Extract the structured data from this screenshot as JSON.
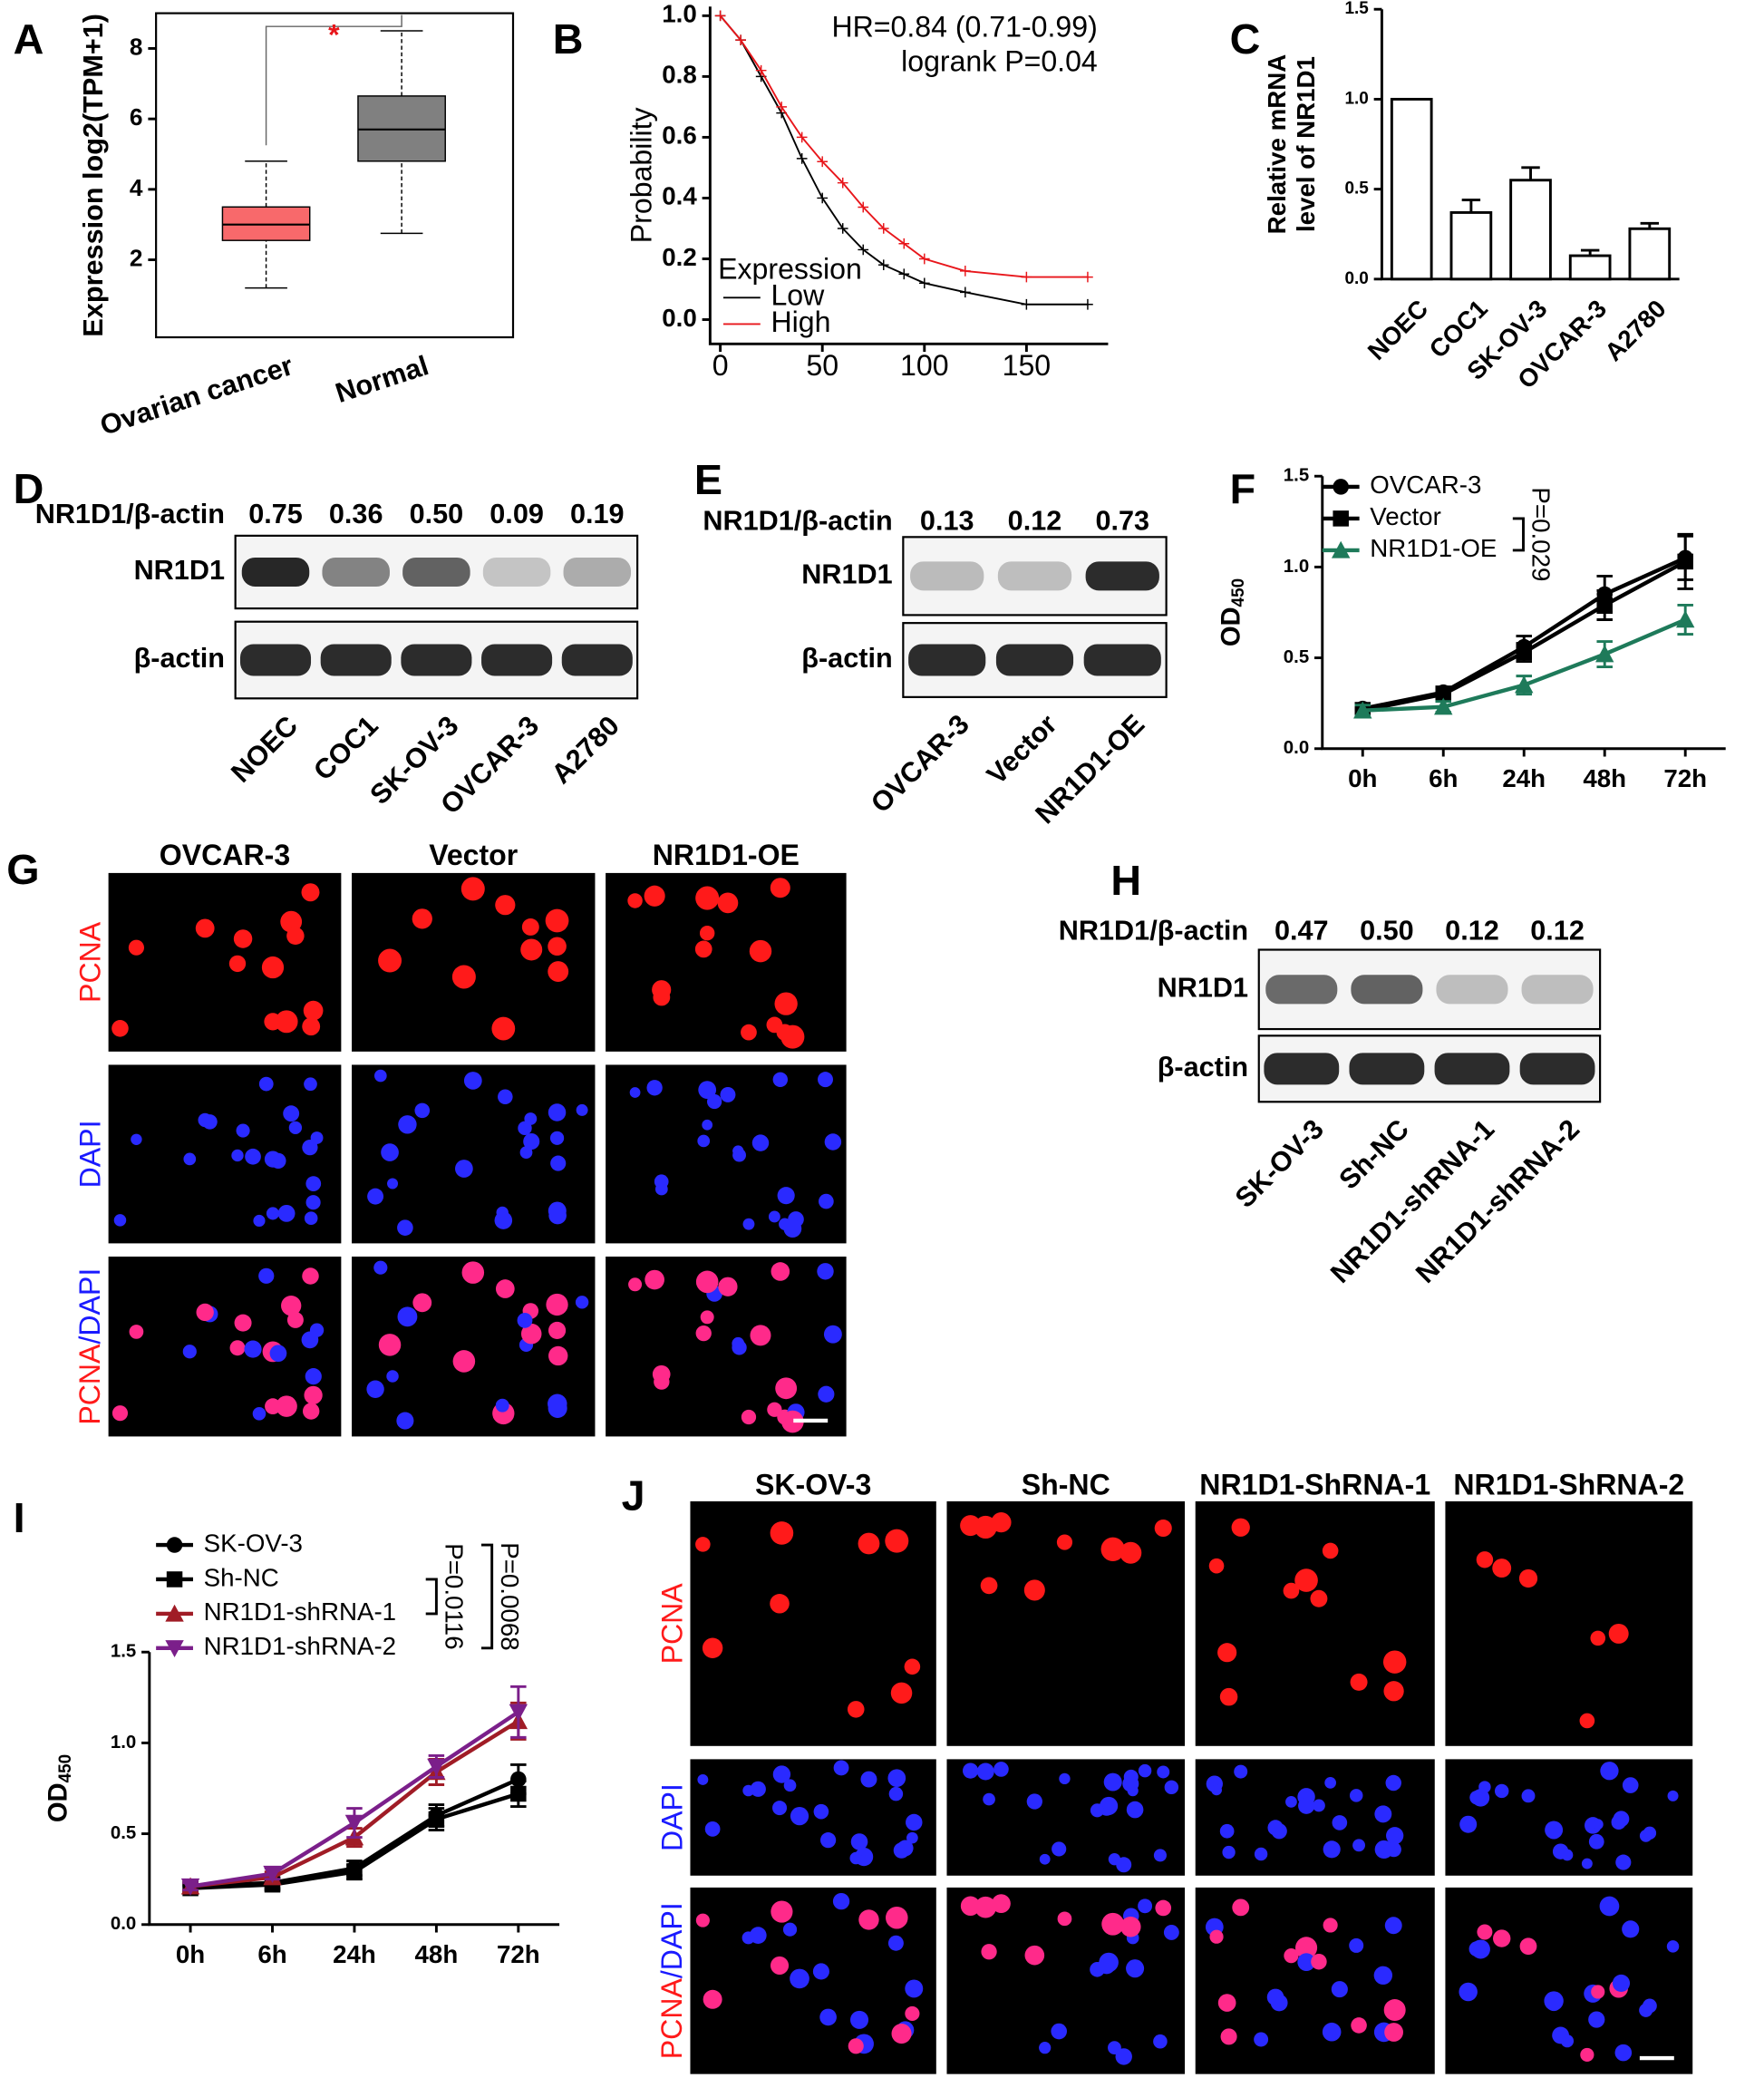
{
  "chart_data": [
    {
      "panel": "A",
      "type": "box",
      "ylabel": "Expression log2(TPM+1)",
      "categories": [
        "Ovarian cancer",
        "Normal"
      ],
      "boxes": [
        {
          "whisker_low": 1.2,
          "q1": 2.55,
          "median": 3.0,
          "q3": 3.5,
          "whisker_high": 4.8,
          "color": "#f8696b"
        },
        {
          "whisker_low": 2.75,
          "q1": 4.8,
          "median": 5.7,
          "q3": 6.65,
          "whisker_high": 8.5,
          "color": "#808080"
        }
      ],
      "significance": "*",
      "ylim": [
        -0.2,
        9
      ],
      "yticks": [
        2,
        4,
        6,
        8
      ]
    },
    {
      "panel": "B",
      "type": "line",
      "ylabel": "Probability",
      "annotations": [
        "HR=0.84 (0.71-0.99)",
        "logrank P=0.04"
      ],
      "legend_title": "Expression",
      "x": [
        0,
        10,
        20,
        30,
        40,
        50,
        60,
        70,
        80,
        90,
        100,
        120,
        150,
        180
      ],
      "series": [
        {
          "name": "Low",
          "color": "#000000",
          "values": [
            1.0,
            0.92,
            0.8,
            0.68,
            0.53,
            0.4,
            0.3,
            0.23,
            0.18,
            0.15,
            0.12,
            0.09,
            0.05,
            0.05
          ]
        },
        {
          "name": "High",
          "color": "#e8161b",
          "values": [
            1.0,
            0.92,
            0.82,
            0.7,
            0.6,
            0.52,
            0.45,
            0.37,
            0.3,
            0.25,
            0.2,
            0.16,
            0.14,
            0.14
          ]
        }
      ],
      "xlim": [
        -5,
        190
      ],
      "xticks": [
        0,
        50,
        100,
        150
      ],
      "ylim": [
        -0.08,
        1.03
      ],
      "yticks": [
        {
          "value": 0,
          "label": "0.0"
        },
        0.2,
        0.4,
        0.6,
        0.8,
        {
          "value": 1,
          "label": "1.0"
        }
      ]
    },
    {
      "panel": "C",
      "type": "bar",
      "ylabel": [
        "Relative mRNA",
        "level of NR1D1"
      ],
      "categories": [
        "NOEC",
        "COC1",
        "SK-OV-3",
        "OVCAR-3",
        "A2780"
      ],
      "values": [
        1.0,
        0.37,
        0.55,
        0.13,
        0.28
      ],
      "errors": [
        0,
        0.07,
        0.07,
        0.03,
        0.03
      ],
      "color": "#ffffff",
      "ylim": [
        0,
        1.5
      ],
      "yticks": [
        {
          "value": 0,
          "label": "0.0"
        },
        0.5,
        {
          "value": 1,
          "label": "1.0"
        },
        1.5
      ]
    },
    {
      "panel": "F",
      "type": "line",
      "ylabel": "OD",
      "ylabel_sub": "450",
      "annotations": [
        "P=0.029"
      ],
      "categories": [
        "0h",
        "6h",
        "24h",
        "48h",
        "72h"
      ],
      "series": [
        {
          "name": "OVCAR-3",
          "color": "#000000",
          "marker": "circle",
          "values": [
            0.22,
            0.31,
            0.56,
            0.85,
            1.05
          ],
          "errors": [
            0.03,
            0.03,
            0.06,
            0.1,
            0.12
          ]
        },
        {
          "name": "Vector",
          "color": "#000000",
          "marker": "square",
          "values": [
            0.21,
            0.3,
            0.53,
            0.79,
            1.03
          ],
          "errors": [
            0.03,
            0.03,
            0.05,
            0.08,
            0.15
          ]
        },
        {
          "name": "NR1D1-OE",
          "color": "#1e7a5a",
          "marker": "triangle",
          "values": [
            0.21,
            0.23,
            0.35,
            0.52,
            0.71
          ],
          "errors": [
            0.03,
            0.03,
            0.05,
            0.07,
            0.08
          ]
        }
      ],
      "ylim": [
        0,
        1.5
      ],
      "yticks": [
        {
          "value": 0,
          "label": "0.0"
        },
        0.5,
        {
          "value": 1,
          "label": "1.0"
        },
        1.5
      ]
    },
    {
      "panel": "I",
      "type": "line",
      "ylabel": "OD",
      "ylabel_sub": "450",
      "annotations": [
        "P=0.0116",
        "P=0.0068"
      ],
      "categories": [
        "0h",
        "6h",
        "24h",
        "48h",
        "72h"
      ],
      "series": [
        {
          "name": "SK-OV-3",
          "color": "#000000",
          "marker": "circle",
          "values": [
            0.21,
            0.23,
            0.31,
            0.6,
            0.8
          ],
          "errors": [
            0.02,
            0.03,
            0.04,
            0.06,
            0.08
          ]
        },
        {
          "name": "Sh-NC",
          "color": "#000000",
          "marker": "square",
          "values": [
            0.2,
            0.22,
            0.29,
            0.58,
            0.72
          ],
          "errors": [
            0.02,
            0.03,
            0.04,
            0.06,
            0.07
          ]
        },
        {
          "name": "NR1D1-shRNA-1",
          "color": "#a01c26",
          "marker": "triangle",
          "values": [
            0.21,
            0.26,
            0.48,
            0.84,
            1.12
          ],
          "errors": [
            0.02,
            0.03,
            0.05,
            0.07,
            0.1
          ]
        },
        {
          "name": "NR1D1-shRNA-2",
          "color": "#7b1f8a",
          "marker": "triangle-down",
          "values": [
            0.21,
            0.28,
            0.56,
            0.87,
            1.17
          ],
          "errors": [
            0.02,
            0.03,
            0.08,
            0.06,
            0.14
          ]
        }
      ],
      "ylim": [
        0,
        1.5
      ],
      "yticks": [
        {
          "value": 0,
          "label": "0.0"
        },
        0.5,
        {
          "value": 1,
          "label": "1.0"
        },
        1.5
      ]
    }
  ],
  "blots": [
    {
      "panel": "D",
      "ratio_label": "NR1D1/β-actin",
      "rows": [
        "NR1D1",
        "β-actin"
      ],
      "lanes": [
        "NOEC",
        "COC1",
        "SK-OV-3",
        "OVCAR-3",
        "A2780"
      ],
      "values": [
        0.75,
        0.36,
        0.5,
        0.09,
        0.19
      ],
      "value_labels": [
        "0.75",
        "0.36",
        "0.50",
        "0.09",
        "0.19"
      ]
    },
    {
      "panel": "E",
      "ratio_label": "NR1D1/β-actin",
      "rows": [
        "NR1D1",
        "β-actin"
      ],
      "lanes": [
        "OVCAR-3",
        "Vector",
        "NR1D1-OE"
      ],
      "values": [
        0.13,
        0.12,
        0.73
      ],
      "value_labels": [
        "0.13",
        "0.12",
        "0.73"
      ]
    },
    {
      "panel": "H",
      "ratio_label": "NR1D1/β-actin",
      "rows": [
        "NR1D1",
        "β-actin"
      ],
      "lanes": [
        "SK-OV-3",
        "Sh-NC",
        "NR1D1-shRNA-1",
        "NR1D1-shRNA-2"
      ],
      "values": [
        0.47,
        0.5,
        0.12,
        0.12
      ],
      "value_labels": [
        "0.47",
        "0.50",
        "0.12",
        "0.12"
      ]
    }
  ],
  "images": [
    {
      "panel": "G",
      "columns": [
        "OVCAR-3",
        "Vector",
        "NR1D1-OE"
      ],
      "rows": [
        "PCNA",
        "DAPI"
      ],
      "merged_row": [
        "PCNA",
        "/DAPI"
      ]
    },
    {
      "panel": "J",
      "columns": [
        "SK-OV-3",
        "Sh-NC",
        "NR1D1-ShRNA-1",
        "NR1D1-ShRNA-2"
      ],
      "rows": [
        "PCNA",
        "DAPI"
      ],
      "merged_row": [
        "PCNA",
        "/DAPI"
      ]
    }
  ]
}
